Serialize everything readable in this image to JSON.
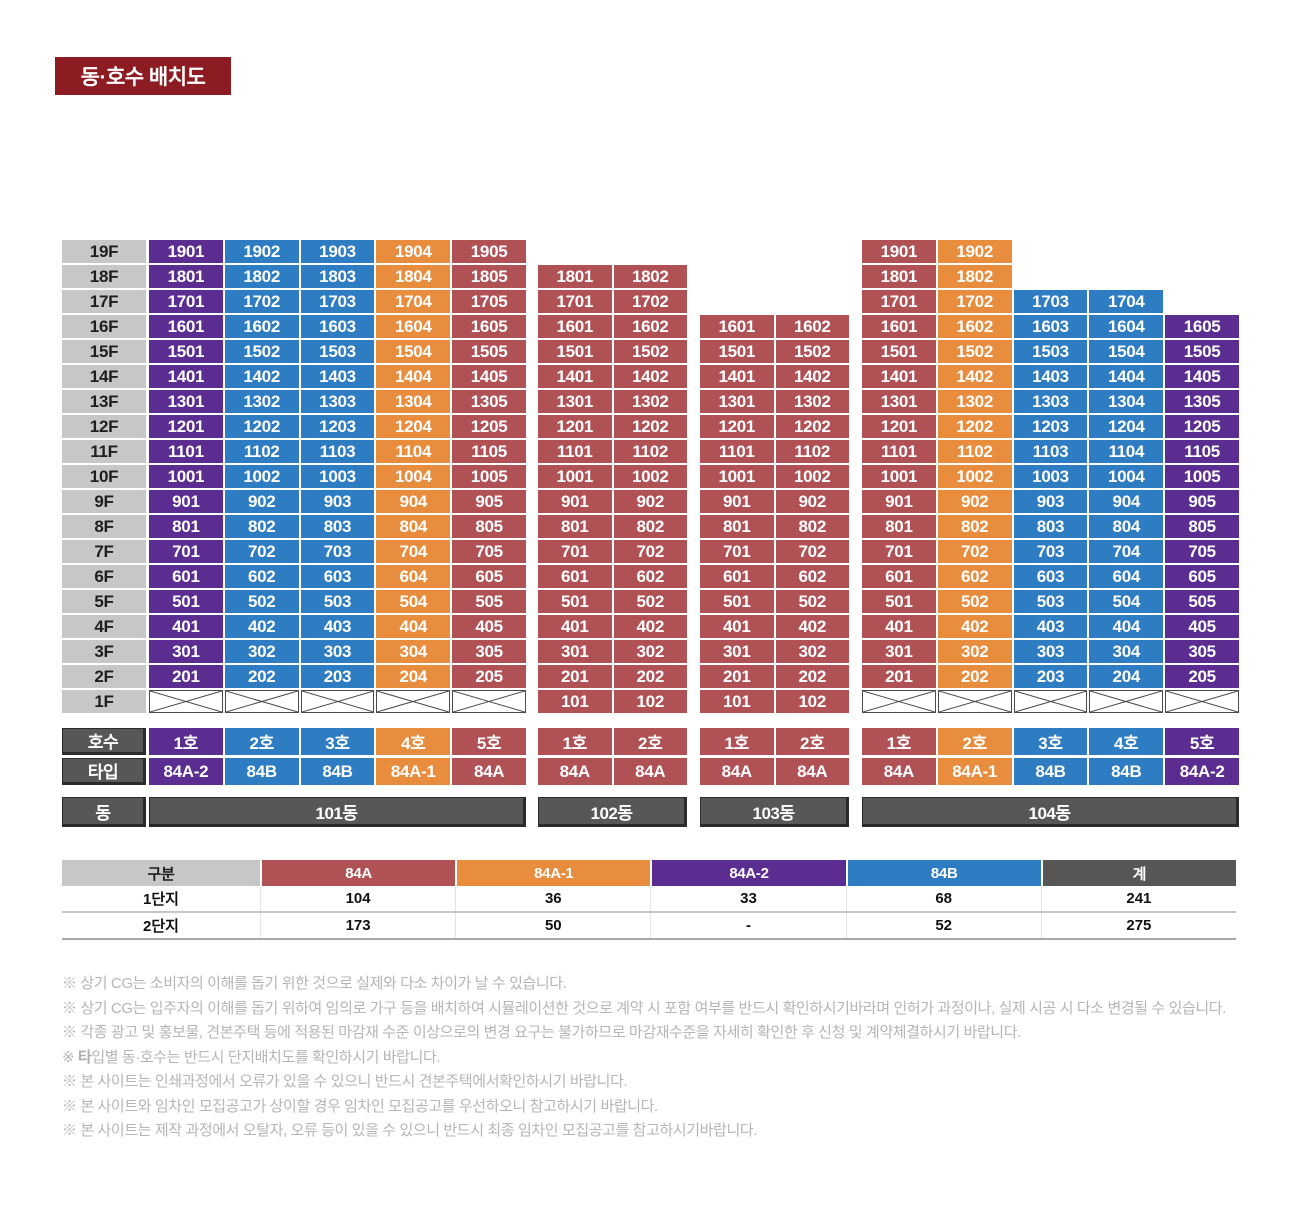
{
  "title": {
    "label": "동·호수 배치도",
    "bg": "#8c1b22",
    "fg": "#ffffff"
  },
  "colors": {
    "84A": "#b05156",
    "84A-1": "#e88d3e",
    "84A-2": "#5c2d91",
    "84B": "#2e7cc1",
    "header_gray": "#575756",
    "label_gray": "#c7c7c7"
  },
  "floors": [
    "19F",
    "18F",
    "17F",
    "16F",
    "15F",
    "14F",
    "13F",
    "12F",
    "11F",
    "10F",
    "9F",
    "8F",
    "7F",
    "6F",
    "5F",
    "4F",
    "3F",
    "2F",
    "1F"
  ],
  "row_headers": {
    "ho": "호수",
    "type": "타입",
    "dong": "동"
  },
  "buildings": [
    {
      "name": "101동",
      "columns": [
        {
          "ho": "1호",
          "type": "84A-2",
          "ground_x": true,
          "cells": [
            "1901",
            "1801",
            "1701",
            "1601",
            "1501",
            "1401",
            "1301",
            "1201",
            "1101",
            "1001",
            "901",
            "801",
            "701",
            "601",
            "501",
            "401",
            "301",
            "201"
          ]
        },
        {
          "ho": "2호",
          "type": "84B",
          "ground_x": true,
          "cells": [
            "1902",
            "1802",
            "1702",
            "1602",
            "1502",
            "1402",
            "1302",
            "1202",
            "1102",
            "1002",
            "902",
            "802",
            "702",
            "602",
            "502",
            "402",
            "302",
            "202"
          ]
        },
        {
          "ho": "3호",
          "type": "84B",
          "ground_x": true,
          "cells": [
            "1903",
            "1803",
            "1703",
            "1603",
            "1503",
            "1403",
            "1303",
            "1203",
            "1103",
            "1003",
            "903",
            "803",
            "703",
            "603",
            "503",
            "403",
            "303",
            "203"
          ]
        },
        {
          "ho": "4호",
          "type": "84A-1",
          "ground_x": true,
          "cells": [
            "1904",
            "1804",
            "1704",
            "1604",
            "1504",
            "1404",
            "1304",
            "1204",
            "1104",
            "1004",
            "904",
            "804",
            "704",
            "604",
            "504",
            "404",
            "304",
            "204"
          ]
        },
        {
          "ho": "5호",
          "type": "84A",
          "ground_x": true,
          "cells": [
            "1905",
            "1805",
            "1705",
            "1605",
            "1505",
            "1405",
            "1305",
            "1205",
            "1105",
            "1005",
            "905",
            "805",
            "705",
            "605",
            "505",
            "405",
            "305",
            "205"
          ]
        }
      ]
    },
    {
      "name": "102동",
      "columns": [
        {
          "ho": "1호",
          "type": "84A",
          "ground_x": false,
          "cells": [
            "1801",
            "1701",
            "1601",
            "1501",
            "1401",
            "1301",
            "1201",
            "1101",
            "1001",
            "901",
            "801",
            "701",
            "601",
            "501",
            "401",
            "301",
            "201",
            "101"
          ]
        },
        {
          "ho": "2호",
          "type": "84A",
          "ground_x": false,
          "cells": [
            "1802",
            "1702",
            "1602",
            "1502",
            "1402",
            "1302",
            "1202",
            "1102",
            "1002",
            "902",
            "802",
            "702",
            "602",
            "502",
            "402",
            "302",
            "202",
            "102"
          ]
        }
      ]
    },
    {
      "name": "103동",
      "columns": [
        {
          "ho": "1호",
          "type": "84A",
          "ground_x": false,
          "cells": [
            "1601",
            "1501",
            "1401",
            "1301",
            "1201",
            "1101",
            "1001",
            "901",
            "801",
            "701",
            "601",
            "501",
            "401",
            "301",
            "201",
            "101"
          ]
        },
        {
          "ho": "2호",
          "type": "84A",
          "ground_x": false,
          "cells": [
            "1602",
            "1502",
            "1402",
            "1302",
            "1202",
            "1102",
            "1002",
            "902",
            "802",
            "702",
            "602",
            "502",
            "402",
            "302",
            "202",
            "102"
          ]
        }
      ]
    },
    {
      "name": "104동",
      "columns": [
        {
          "ho": "1호",
          "type": "84A",
          "ground_x": true,
          "cells": [
            "1901",
            "1801",
            "1701",
            "1601",
            "1501",
            "1401",
            "1301",
            "1201",
            "1101",
            "1001",
            "901",
            "801",
            "701",
            "601",
            "501",
            "401",
            "301",
            "201"
          ]
        },
        {
          "ho": "2호",
          "type": "84A-1",
          "ground_x": true,
          "cells": [
            "1902",
            "1802",
            "1702",
            "1602",
            "1502",
            "1402",
            "1302",
            "1202",
            "1102",
            "1002",
            "902",
            "802",
            "702",
            "602",
            "502",
            "402",
            "302",
            "202"
          ]
        },
        {
          "ho": "3호",
          "type": "84B",
          "ground_x": true,
          "cells": [
            "1703",
            "1603",
            "1503",
            "1403",
            "1303",
            "1203",
            "1103",
            "1003",
            "903",
            "803",
            "703",
            "603",
            "503",
            "403",
            "303",
            "203"
          ]
        },
        {
          "ho": "4호",
          "type": "84B",
          "ground_x": true,
          "cells": [
            "1704",
            "1604",
            "1504",
            "1404",
            "1304",
            "1204",
            "1104",
            "1004",
            "904",
            "804",
            "704",
            "604",
            "504",
            "404",
            "304",
            "204"
          ]
        },
        {
          "ho": "5호",
          "type": "84A-2",
          "ground_x": true,
          "cells": [
            "1605",
            "1505",
            "1405",
            "1305",
            "1205",
            "1105",
            "1005",
            "905",
            "805",
            "705",
            "605",
            "505",
            "405",
            "305",
            "205"
          ]
        }
      ]
    }
  ],
  "summary": {
    "headers": [
      {
        "label": "구분",
        "bg": "#c7c7c7",
        "fg": "#1c1c1c"
      },
      {
        "label": "84A",
        "bg": "#b05156",
        "fg": "#ffffff"
      },
      {
        "label": "84A-1",
        "bg": "#e88d3e",
        "fg": "#ffffff"
      },
      {
        "label": "84A-2",
        "bg": "#5c2d91",
        "fg": "#ffffff"
      },
      {
        "label": "84B",
        "bg": "#2e7cc1",
        "fg": "#ffffff"
      },
      {
        "label": "계",
        "bg": "#575756",
        "fg": "#ffffff"
      }
    ],
    "rows": [
      {
        "label": "1단지",
        "values": [
          "104",
          "36",
          "33",
          "68",
          "241"
        ]
      },
      {
        "label": "2단지",
        "values": [
          "173",
          "50",
          "-",
          "52",
          "275"
        ]
      }
    ]
  },
  "notes": [
    [
      {
        "t": "※ 상기 CG는 소비자의 이해를 돕기 위한 것으로 실제와 다소 차이가 날 수 있습니다.",
        "b": false
      }
    ],
    [
      {
        "t": "※ 상기 CG는 입주자의 이해를 돕기 위하여 임의로 가구 등을 배치하여 시뮬레이션한 것으로 계약 시 포함 여부를 반드시 확인하시기바라며 인허가 과정이나, 실제 시공 시 다소 변경될 수 있습니다.",
        "b": false
      }
    ],
    [
      {
        "t": "※ 각종 광고 및 홍보물, 견본주택 등에 적용된 마감재 수준 이상으로의 변경 요구는 불가하므로 마감재수준을 자세히 확인한 후 신청 및 계약체결하시기 바랍니다.",
        "b": false
      }
    ],
    [
      {
        "t": "※ ",
        "b": false
      },
      {
        "t": "타",
        "b": true
      },
      {
        "t": "입별 동·호수는 반드시 단지배치도를 확인하시기 바랍니다.",
        "b": false
      }
    ],
    [
      {
        "t": "※ 본 사이트는 인쇄과정에서 오류가 있을 수 있으니 반드시 견본주택에서확인하시기 바랍니다.",
        "b": false
      }
    ],
    [
      {
        "t": "※ 본 사이트와 임차인 모집공고가 상이할 경우 임차인 모집공고를 우선하오니 참고하시기 바랍니다.",
        "b": false
      }
    ],
    [
      {
        "t": "※ 본 사이트는 제작 과정에서 오탈자, 오류 등이 있을 수 있으니 반드시 최종 임차인 모집공고를 참고하시기바랍니다.",
        "b": false
      }
    ]
  ]
}
